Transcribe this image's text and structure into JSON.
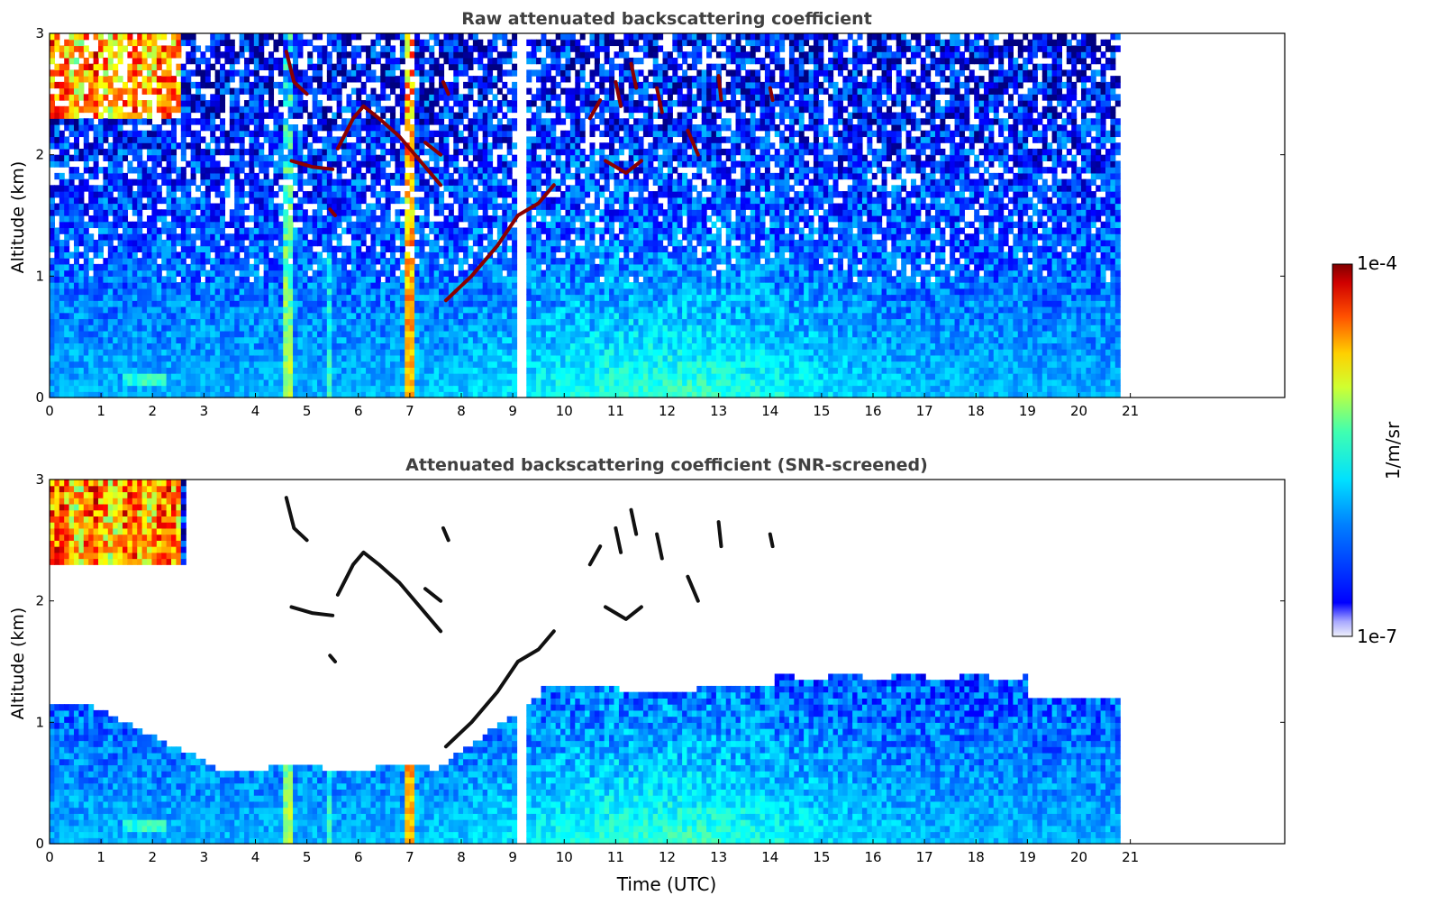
{
  "chart_data": [
    {
      "type": "heatmap",
      "title": "Raw attenuated backscattering coefficient",
      "ylabel": "Altitude (km)",
      "xlabel": "",
      "xlim": [
        0,
        24
      ],
      "ylim": [
        0,
        3
      ],
      "data_end_x": 20.8,
      "x_ticks": [
        "0",
        "1",
        "2",
        "3",
        "4",
        "5",
        "6",
        "7",
        "8",
        "9",
        "10",
        "11",
        "12",
        "13",
        "14",
        "15",
        "16",
        "17",
        "18",
        "19",
        "20",
        "21"
      ],
      "y_ticks": [
        "0",
        "1",
        "2",
        "3"
      ],
      "screened": false
    },
    {
      "type": "heatmap",
      "title": "Attenuated backscattering coefficient (SNR-screened)",
      "ylabel": "Altitude (km)",
      "xlabel": "Time (UTC)",
      "xlim": [
        0,
        24
      ],
      "ylim": [
        0,
        3
      ],
      "data_end_x": 20.8,
      "x_ticks": [
        "0",
        "1",
        "2",
        "3",
        "4",
        "5",
        "6",
        "7",
        "8",
        "9",
        "10",
        "11",
        "12",
        "13",
        "14",
        "15",
        "16",
        "17",
        "18",
        "19",
        "20",
        "21"
      ],
      "y_ticks": [
        "0",
        "1",
        "2",
        "3"
      ],
      "screened": true
    }
  ],
  "colorbar": {
    "label": "1/m/sr",
    "max_label": "1e-4",
    "min_label": "1e-7",
    "scale": "log",
    "colormap": "jet"
  }
}
